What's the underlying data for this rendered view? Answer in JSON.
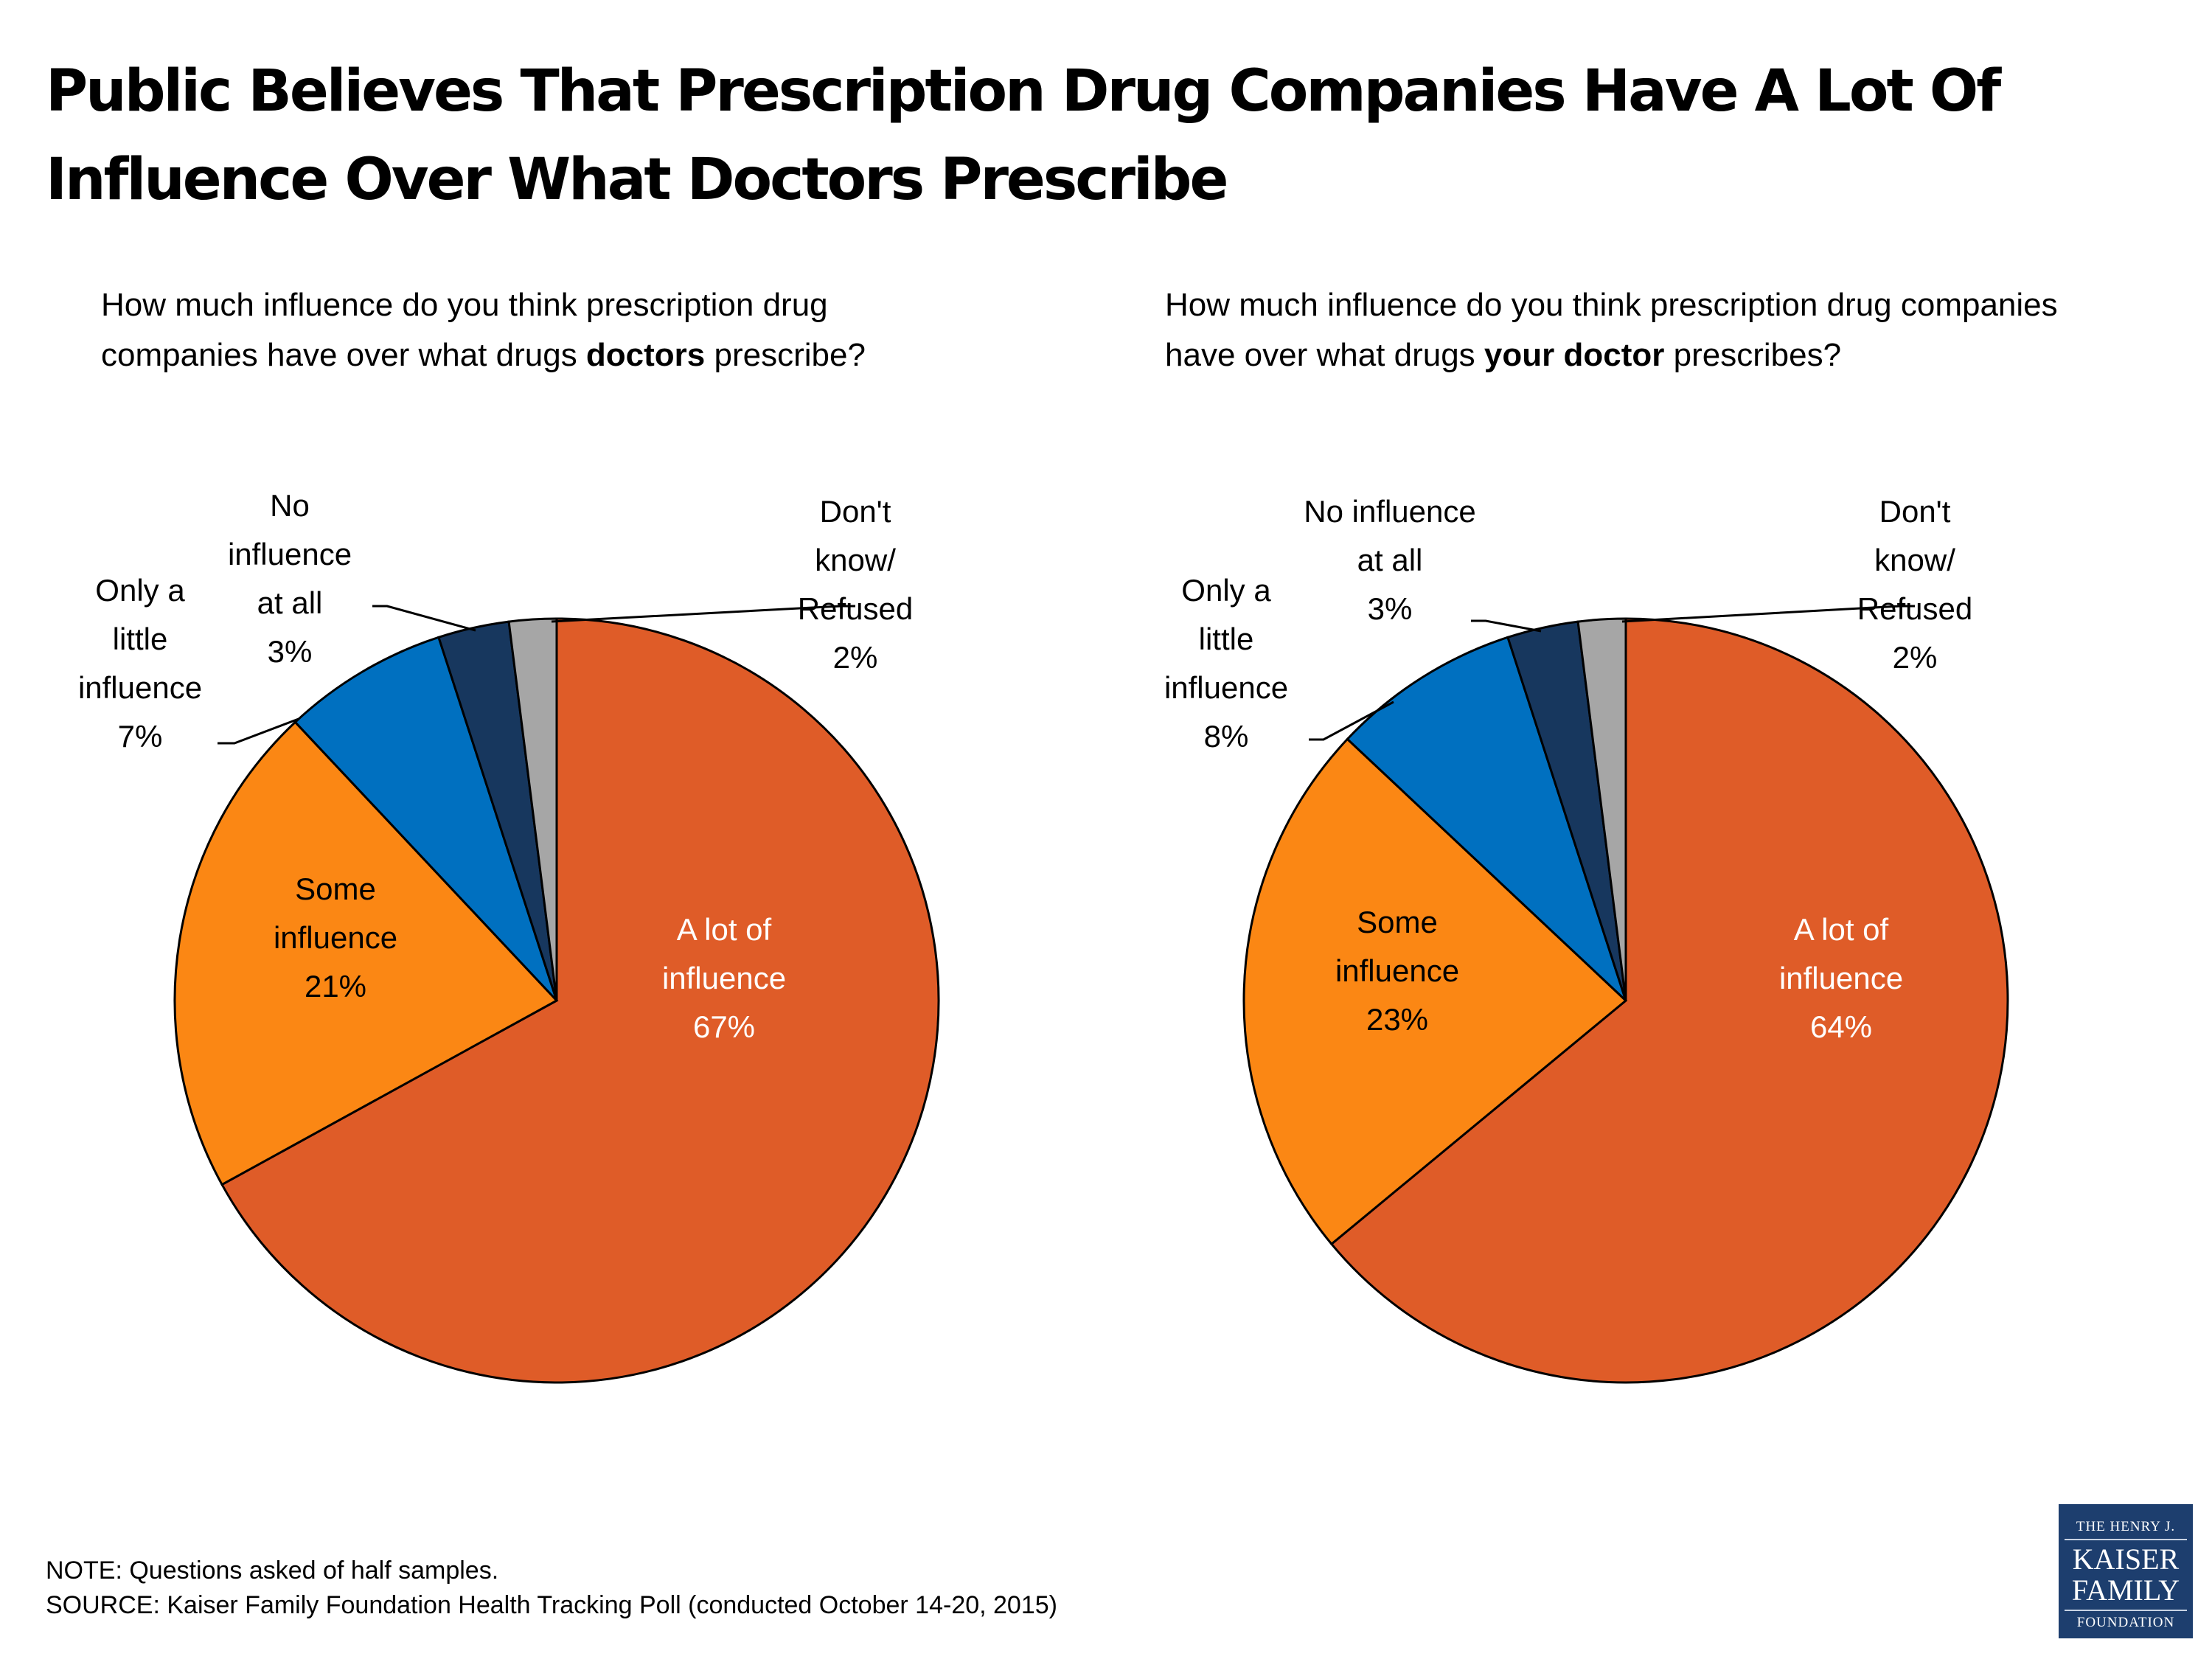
{
  "title": "Public Believes That Prescription Drug Companies Have A Lot Of Influence Over What Doctors Prescribe",
  "questions": {
    "left": {
      "pre": "How much influence do you think prescription drug companies have over what drugs ",
      "bold": "doctors",
      "post": " prescribe?"
    },
    "right": {
      "pre": "How much influence do you think prescription drug companies have over what drugs ",
      "bold": "your doctor",
      "post": " prescribes?"
    }
  },
  "footnotes": {
    "note": "NOTE: Questions asked of half samples.",
    "source": "SOURCE: Kaiser Family Foundation Health Tracking Poll (conducted October 14-20, 2015)"
  },
  "logo": {
    "line1": "THE HENRY J.",
    "line2": "KAISER",
    "line3": "FAMILY",
    "line4": "FOUNDATION"
  },
  "colors": {
    "a_lot": "#df5c28",
    "some": "#fb8714",
    "little": "#0070c0",
    "none": "#17375e",
    "dont_know": "#a6a6a6"
  },
  "chart_data": [
    {
      "type": "pie",
      "title": "How much influence do you think prescription drug companies have over what drugs doctors prescribe?",
      "start": "12 o'clock, clockwise",
      "slices": [
        {
          "label": "A lot of influence",
          "value": 67,
          "color": "#df5c28",
          "text_color": "#ffffff"
        },
        {
          "label": "Some influence",
          "value": 21,
          "color": "#fb8714",
          "text_color": "#000000"
        },
        {
          "label": "Only a little influence",
          "value": 7,
          "color": "#0070c0",
          "text_color": "#000000"
        },
        {
          "label": "No influence at all",
          "value": 3,
          "color": "#17375e",
          "text_color": "#000000"
        },
        {
          "label": "Don't know/ Refused",
          "value": 2,
          "color": "#a6a6a6",
          "text_color": "#000000"
        }
      ],
      "data_labels": [
        [
          "A lot of",
          "influence",
          "67%"
        ],
        [
          "Some",
          "influence",
          "21%"
        ],
        [
          "Only a",
          "little",
          "influence",
          "7%"
        ],
        [
          "No",
          "influence",
          "at all",
          "3%"
        ],
        [
          "Don't",
          "know/",
          "Refused",
          "2%"
        ]
      ]
    },
    {
      "type": "pie",
      "title": "How much influence do you think prescription drug companies have over what drugs your doctor prescribes?",
      "start": "12 o'clock, clockwise",
      "slices": [
        {
          "label": "A lot of influence",
          "value": 64,
          "color": "#df5c28",
          "text_color": "#ffffff"
        },
        {
          "label": "Some influence",
          "value": 23,
          "color": "#fb8714",
          "text_color": "#000000"
        },
        {
          "label": "Only a little influence",
          "value": 8,
          "color": "#0070c0",
          "text_color": "#000000"
        },
        {
          "label": "No influence at all",
          "value": 3,
          "color": "#17375e",
          "text_color": "#000000"
        },
        {
          "label": "Don't know/ Refused",
          "value": 2,
          "color": "#a6a6a6",
          "text_color": "#000000"
        }
      ],
      "data_labels": [
        [
          "A lot of",
          "influence",
          "64%"
        ],
        [
          "Some",
          "influence",
          "23%"
        ],
        [
          "Only a",
          "little",
          "influence",
          "8%"
        ],
        [
          "No influence",
          "at all",
          "3%"
        ],
        [
          "Don't",
          "know/",
          "Refused",
          "2%"
        ]
      ]
    }
  ]
}
